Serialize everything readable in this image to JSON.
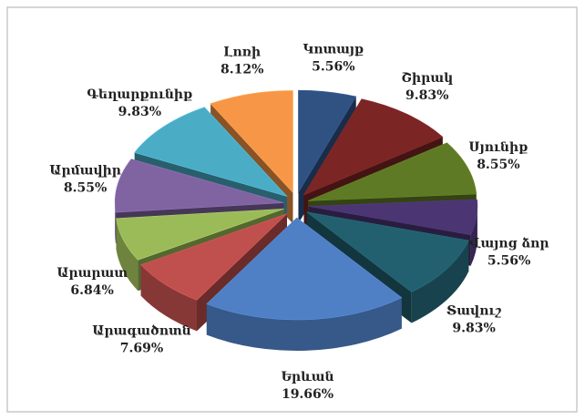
{
  "chart_data": {
    "type": "pie",
    "categories": [
      "Կոտայք",
      "Շիրակ",
      "Սյունիք",
      "Վայոց ձոր",
      "Տավուշ",
      "Երևան",
      "Արագածոտն",
      "Արարատ",
      "Արմավիր",
      "Գեղարքունիք",
      "Լոռի"
    ],
    "values": [
      5.56,
      9.83,
      8.55,
      5.56,
      9.83,
      19.66,
      7.69,
      6.84,
      8.55,
      9.83,
      8.12
    ],
    "value_labels": [
      "5.56%",
      "9.83%",
      "8.55%",
      "5.56%",
      "9.83%",
      "19.66%",
      "7.69%",
      "6.84%",
      "8.55%",
      "9.83%",
      "8.12%"
    ],
    "colors": [
      "#2f5283",
      "#7b2525",
      "#5e7a24",
      "#4b3572",
      "#22606f",
      "#4f7fc4",
      "#c0504d",
      "#9bbb59",
      "#8064a2",
      "#4bacc6",
      "#f79646"
    ]
  }
}
